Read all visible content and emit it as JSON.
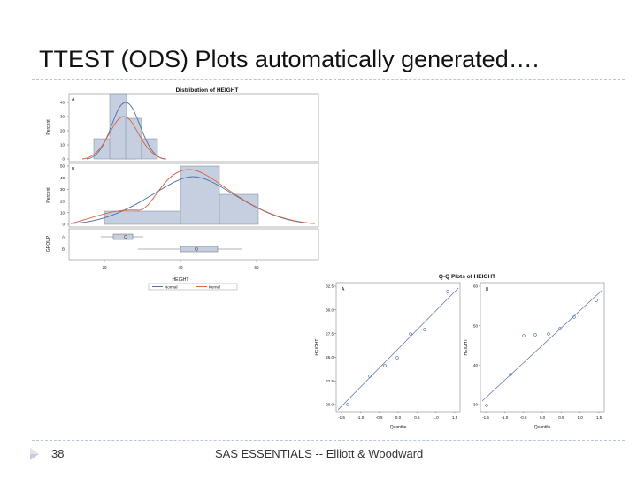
{
  "slide": {
    "title": "TTEST (ODS) Plots automatically generated….",
    "page_number": "38",
    "footer": "SAS ESSENTIALS -- Elliott & Woodward"
  },
  "colors": {
    "bar": "#c5cfe0",
    "normal": "#4f6fa8",
    "kernel": "#d9653a",
    "text": "#111111"
  },
  "chart_data": [
    {
      "type": "bar",
      "title": "Distribution of HEIGHT",
      "xlabel": "HEIGHT",
      "ylabel": "Percent",
      "panels": [
        {
          "group": "A",
          "yticks": [
            "40",
            "30",
            "20",
            "10",
            "0"
          ]
        },
        {
          "group": "B",
          "yticks": [
            "50",
            "40",
            "30",
            "20",
            "10",
            "0"
          ]
        }
      ],
      "box_axis_label": "GROUP",
      "box_ticks": [
        "A",
        "B"
      ],
      "xticks": [
        "20",
        "40",
        "60"
      ],
      "legend": [
        "Normal",
        "Kernel"
      ]
    },
    {
      "type": "scatter",
      "title": "Q-Q Plots of HEIGHT",
      "xlabel": "Quantile",
      "ylabel": "HEIGHT",
      "panels": [
        {
          "group": "A",
          "yticks": [
            "32.5",
            "30.0",
            "27.5",
            "25.0",
            "22.5",
            "20.0"
          ],
          "xticks": [
            "-1.5",
            "-1.0",
            "-0.5",
            "0.0",
            "0.5",
            "1.0",
            "1.5"
          ]
        },
        {
          "group": "B",
          "yticks": [
            "60",
            "50",
            "40",
            "30"
          ],
          "xticks": [
            "-1.5",
            "-1.0",
            "-0.5",
            "0.0",
            "0.5",
            "1.0",
            "1.5"
          ]
        }
      ]
    }
  ]
}
